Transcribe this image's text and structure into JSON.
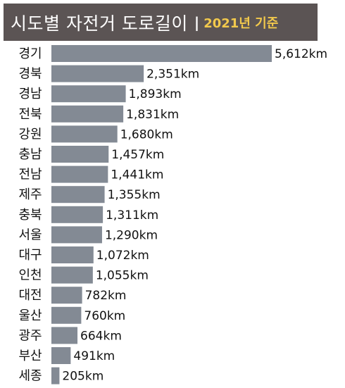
{
  "title": {
    "main": "시도별 자전거 도로길이",
    "separator": "|",
    "sub": "2021년 기준"
  },
  "colors": {
    "title_bg": "#5b5454",
    "title_text": "#ffffff",
    "title_accent": "#f2c94c",
    "bar": "#838a94"
  },
  "chart_data": {
    "type": "bar",
    "orientation": "horizontal",
    "title": "시도별 자전거 도로길이 | 2021년 기준",
    "unit": "km",
    "categories": [
      "경기",
      "경북",
      "경남",
      "전북",
      "강원",
      "충남",
      "전남",
      "제주",
      "충북",
      "서울",
      "대구",
      "인천",
      "대전",
      "울산",
      "광주",
      "부산",
      "세종"
    ],
    "values": [
      5612,
      2351,
      1893,
      1831,
      1680,
      1457,
      1441,
      1355,
      1311,
      1290,
      1072,
      1055,
      782,
      760,
      664,
      491,
      205
    ],
    "value_labels": [
      "5,612km",
      "2,351km",
      "1,893km",
      "1,831km",
      "1,680km",
      "1,457km",
      "1,441km",
      "1,355km",
      "1,311km",
      "1,290km",
      "1,072km",
      "1,055km",
      "782km",
      "760km",
      "664km",
      "491km",
      "205km"
    ],
    "xlim": [
      0,
      5612
    ],
    "grid": false,
    "legend": "none"
  }
}
